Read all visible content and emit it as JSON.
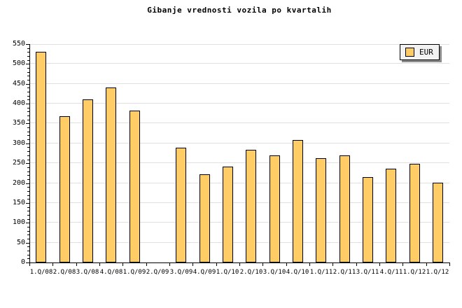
{
  "chart_data": {
    "type": "bar",
    "title": "Gibanje vrednosti vozila po kvartalih",
    "categories": [
      "1.Q/08",
      "2.Q/08",
      "3.Q/08",
      "4.Q/08",
      "1.Q/09",
      "2.Q/09",
      "3.Q/09",
      "4.Q/09",
      "1.Q/10",
      "2.Q/10",
      "3.Q/10",
      "4.Q/10",
      "1.Q/11",
      "2.Q/11",
      "3.Q/11",
      "4.Q/11",
      "1.Q/12",
      "1.Q/12"
    ],
    "series": [
      {
        "name": "EUR",
        "values": [
          530,
          368,
          410,
          441,
          383,
          0,
          289,
          222,
          241,
          283,
          269,
          308,
          263,
          269,
          215,
          236,
          248,
          201
        ]
      }
    ],
    "xlabel": "",
    "ylabel": "",
    "ylim": [
      0,
      550
    ],
    "ytick_step": 50,
    "y_minor_tick_step": 10,
    "ytick_labels": [
      "0",
      "50",
      "100",
      "150",
      "200",
      "250",
      "300",
      "350",
      "400",
      "450",
      "500",
      "550"
    ],
    "grid": "horizontal-on",
    "legend_position": "top-right",
    "legend_entries": [
      "EUR"
    ],
    "colors": {
      "bar_fill": "#FFCC66",
      "bar_border": "#000000",
      "gridline": "#E0E0E0",
      "axis": "#000000",
      "text": "#000000",
      "legend_bg": "#F2F2F2",
      "legend_shadow": "#8C8C8C",
      "background": "#FFFFFF"
    }
  }
}
